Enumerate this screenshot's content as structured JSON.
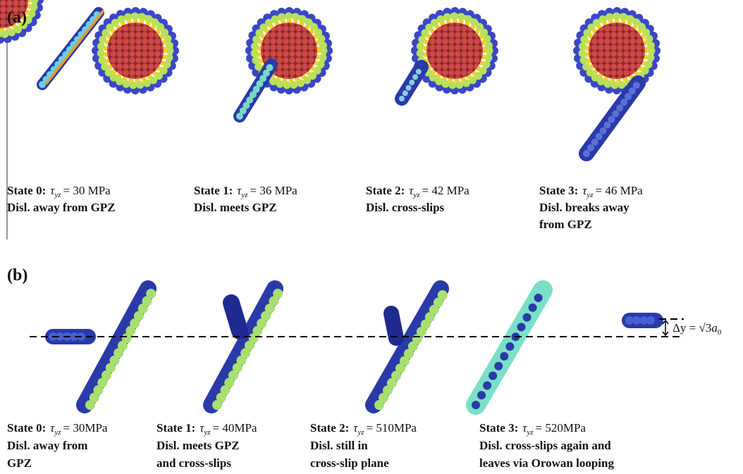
{
  "panels": [
    {
      "label": "(a)",
      "states": [
        {
          "state": "State 0:",
          "tau": "τ",
          "sub": "yz",
          "value": "= 30 MPa",
          "lines": [
            "Disl.  away from GPZ"
          ]
        },
        {
          "state": "State 1:",
          "tau": "τ",
          "sub": "yz",
          "value": "= 36 MPa",
          "lines": [
            "Disl.  meets GPZ"
          ]
        },
        {
          "state": "State 2:",
          "tau": "τ",
          "sub": "yz",
          "value": "= 42 MPa",
          "lines": [
            "Disl.  cross-slips"
          ]
        },
        {
          "state": "State 3:",
          "tau": "τ",
          "sub": "yz",
          "value": "= 46 MPa",
          "lines": [
            "Disl.  breaks away",
            "from GPZ"
          ]
        }
      ]
    },
    {
      "label": "(b)",
      "states": [
        {
          "state": "State 0:",
          "tau": "τ",
          "sub": "yz",
          "value": "= 30MPa",
          "lines": [
            "Disl.  away from",
            "GPZ"
          ]
        },
        {
          "state": "State 1:",
          "tau": "τ",
          "sub": "yz",
          "value": "= 40MPa",
          "lines": [
            "Disl.  meets GPZ",
            "and cross-slips"
          ]
        },
        {
          "state": "State 2:",
          "tau": "τ",
          "sub": "yz",
          "value": "= 510MPa",
          "lines": [
            "Disl.  still in",
            "cross-slip plane"
          ]
        },
        {
          "state": "State 3:",
          "tau": "τ",
          "sub": "yz",
          "value": "= 520MPa",
          "lines": [
            "Disl.  cross-slips again and",
            "leaves via Orowan looping"
          ]
        }
      ]
    }
  ],
  "delta": {
    "symbol": "Δy = ",
    "root": "√3",
    "a": "a",
    "sub": "0"
  }
}
